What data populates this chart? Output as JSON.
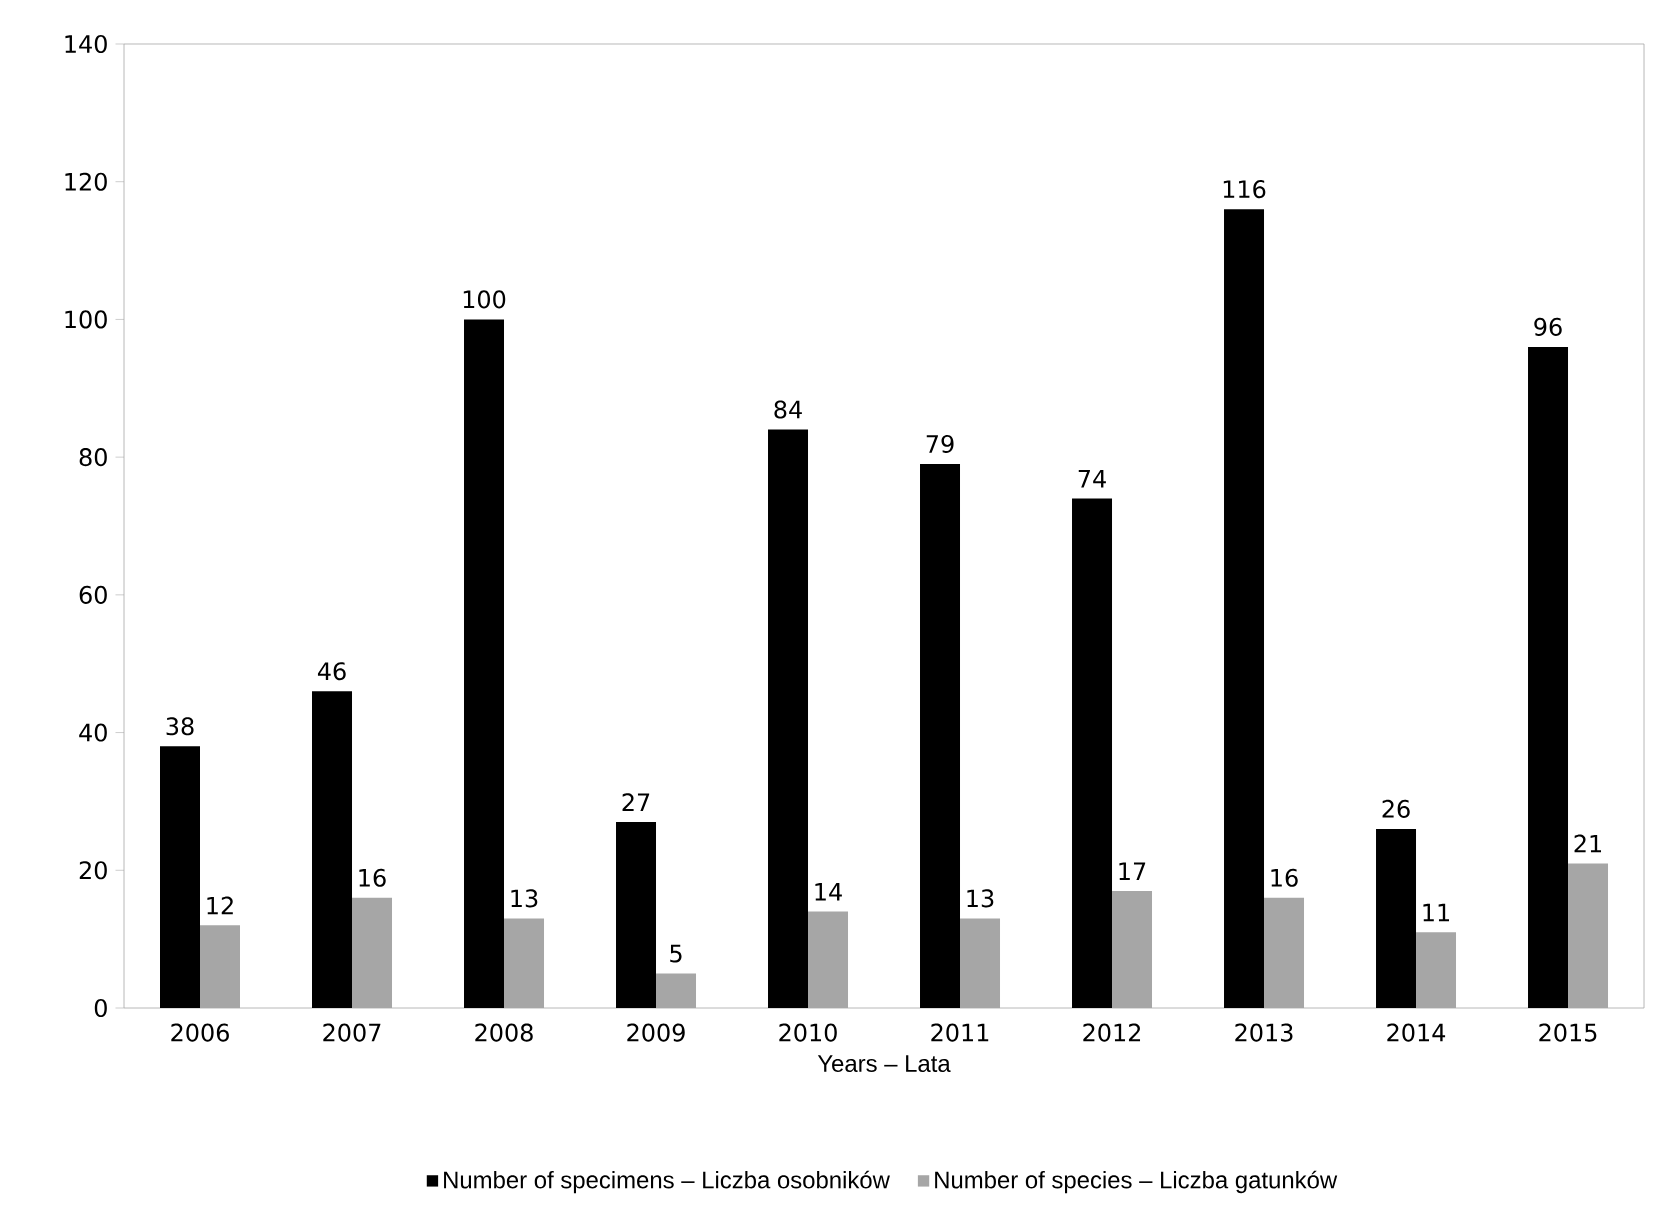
{
  "chart_data": {
    "type": "bar",
    "xlabel": "Years – Lata",
    "categories": [
      "2006",
      "2007",
      "2008",
      "2009",
      "2010",
      "2011",
      "2012",
      "2013",
      "2014",
      "2015"
    ],
    "series": [
      {
        "name": "Number of specimens – Liczba osobników",
        "color": "#000000",
        "values": [
          38,
          46,
          100,
          27,
          84,
          79,
          74,
          116,
          26,
          96
        ]
      },
      {
        "name": "Number of species – Liczba gatunków",
        "color": "#a6a6a6",
        "values": [
          12,
          16,
          13,
          5,
          14,
          13,
          17,
          16,
          11,
          21
        ]
      }
    ],
    "ylim": [
      0,
      140
    ],
    "yticks": [
      0,
      20,
      40,
      60,
      80,
      100,
      120,
      140
    ],
    "data_labels": true,
    "legend": "bottom",
    "grid": false
  }
}
